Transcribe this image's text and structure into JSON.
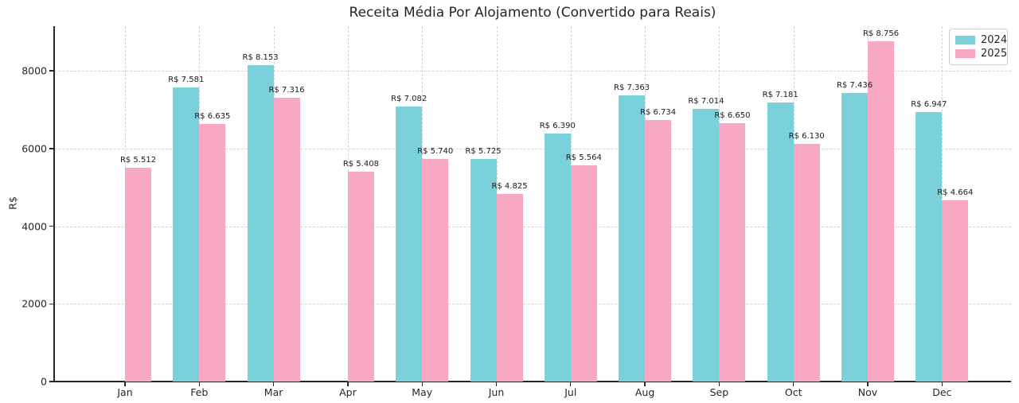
{
  "chart_data": {
    "type": "bar",
    "title": "Receita Média Por Alojamento (Convertido para Reais)",
    "xlabel": "",
    "ylabel": "R$",
    "categories": [
      "Jan",
      "Feb",
      "Mar",
      "Apr",
      "May",
      "Jun",
      "Jul",
      "Aug",
      "Sep",
      "Oct",
      "Nov",
      "Dec"
    ],
    "series": [
      {
        "name": "2024",
        "color": "#7bd1db",
        "values": [
          null,
          7581,
          8153,
          null,
          7082,
          5725,
          6390,
          7363,
          7014,
          7181,
          7436,
          6947
        ],
        "labels": [
          "",
          "R$ 7.581",
          "R$ 8.153",
          "",
          "R$ 7.082",
          "R$ 5.725",
          "R$ 6.390",
          "R$ 7.363",
          "R$ 7.014",
          "R$ 7.181",
          "R$ 7.436",
          "R$ 6.947"
        ]
      },
      {
        "name": "2025",
        "color": "#f6a8c5",
        "values": [
          5512,
          6635,
          7316,
          5408,
          5740,
          4825,
          5564,
          6734,
          6650,
          6130,
          8756,
          4664
        ],
        "labels": [
          "R$ 5.512",
          "R$ 6.635",
          "R$ 7.316",
          "R$ 5.408",
          "R$ 5.740",
          "R$ 4.825",
          "R$ 5.564",
          "R$ 6.734",
          "R$ 6.650",
          "R$ 6.130",
          "R$ 8.756",
          "R$ 4.664"
        ]
      }
    ],
    "yticks": [
      0,
      2000,
      4000,
      6000,
      8000
    ],
    "ylim": [
      0,
      9150
    ],
    "grid": "dashed",
    "legend_position": "upper right"
  }
}
